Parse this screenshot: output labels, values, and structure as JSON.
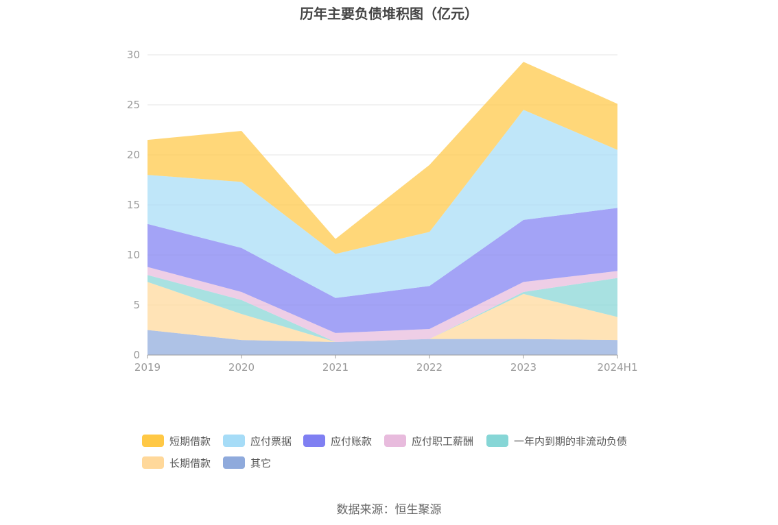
{
  "chart_data": {
    "type": "area",
    "title": "历年主要负债堆积图（亿元）",
    "categories": [
      "2019",
      "2020",
      "2021",
      "2022",
      "2023",
      "2024H1"
    ],
    "ylim": [
      0,
      30
    ],
    "yticks": [
      0,
      5,
      10,
      15,
      20,
      25,
      30
    ],
    "grid": true,
    "legend_position": "bottom",
    "stacked": true,
    "series": [
      {
        "name": "其它",
        "color": "#8FAADC",
        "values": [
          2.5,
          1.5,
          1.3,
          1.6,
          1.6,
          1.5
        ]
      },
      {
        "name": "长期借款",
        "color": "#FFD89A",
        "values": [
          4.8,
          2.6,
          0.0,
          0.0,
          4.5,
          2.3
        ]
      },
      {
        "name": "一年内到期的非流动负债",
        "color": "#86D6D6",
        "values": [
          0.7,
          1.4,
          0.0,
          0.0,
          0.2,
          3.9
        ]
      },
      {
        "name": "应付职工薪酬",
        "color": "#E8BBDD",
        "values": [
          0.8,
          0.8,
          0.9,
          1.0,
          1.0,
          0.7
        ]
      },
      {
        "name": "应付账款",
        "color": "#7F7FF2",
        "values": [
          4.3,
          4.4,
          3.5,
          4.3,
          6.2,
          6.3
        ]
      },
      {
        "name": "应付票据",
        "color": "#A6DCF7",
        "values": [
          4.9,
          6.6,
          4.4,
          5.4,
          11.0,
          5.8
        ]
      },
      {
        "name": "短期借款",
        "color": "#FFC845",
        "values": [
          3.5,
          5.1,
          1.5,
          6.7,
          4.8,
          4.6
        ]
      }
    ]
  },
  "legend_order": [
    "短期借款",
    "应付票据",
    "应付账款",
    "应付职工薪酬",
    "一年内到期的非流动负债",
    "长期借款",
    "其它"
  ],
  "source": "数据来源：恒生聚源"
}
